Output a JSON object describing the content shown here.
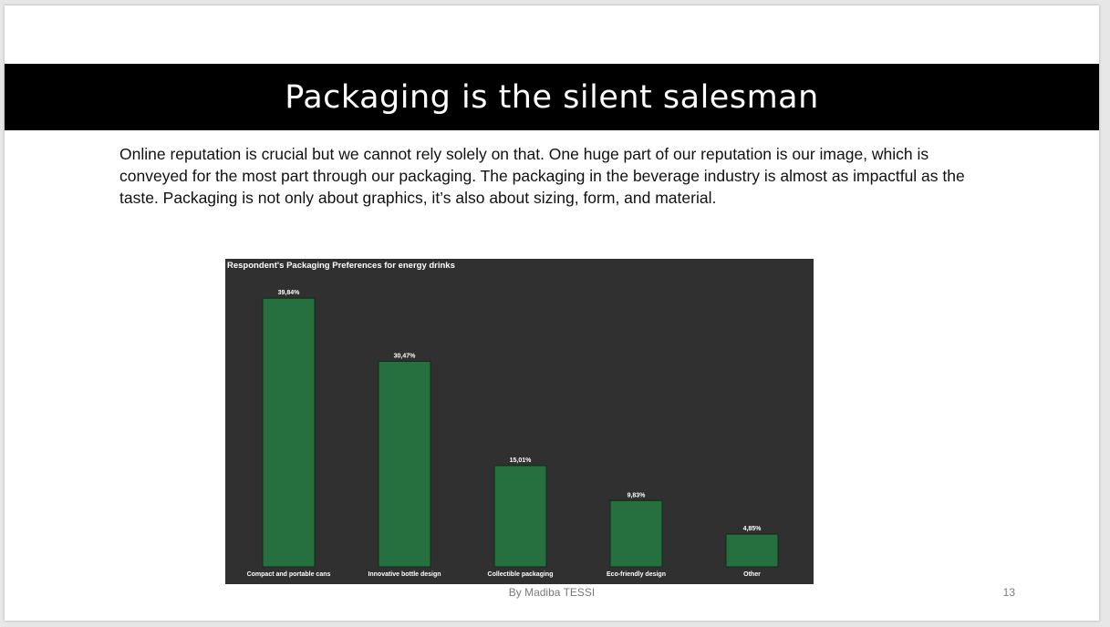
{
  "slide": {
    "title": "Packaging is the silent salesman",
    "body": "Online reputation is crucial but we cannot rely solely on that. One huge part of our reputation is our image, which is conveyed for the most part through our packaging.  The packaging in the beverage industry is almost as impactful as the taste. Packaging is not only about graphics, it’s also about sizing,  form, and material.",
    "author": "By Madiba TESSI",
    "page_number": "13"
  },
  "colors": {
    "title_bar": "#000000",
    "chart_background": "#303030",
    "bar_fill": "#267040",
    "bar_stroke": "#0f2a17",
    "chart_text": "#ffffff"
  },
  "chart_data": {
    "type": "bar",
    "title": "Respondent's Packaging Preferences for energy drinks",
    "categories": [
      "Compact and portable cans",
      "Innovative bottle design",
      "Collectible packaging",
      "Eco-friendly design",
      "Other"
    ],
    "values": [
      39.84,
      30.47,
      15.01,
      9.83,
      4.85
    ],
    "value_labels": [
      "39,84%",
      "30,47%",
      "15,01%",
      "9,83%",
      "4,85%"
    ],
    "ylim": [
      0,
      40
    ],
    "grid": false,
    "legend": "none"
  }
}
